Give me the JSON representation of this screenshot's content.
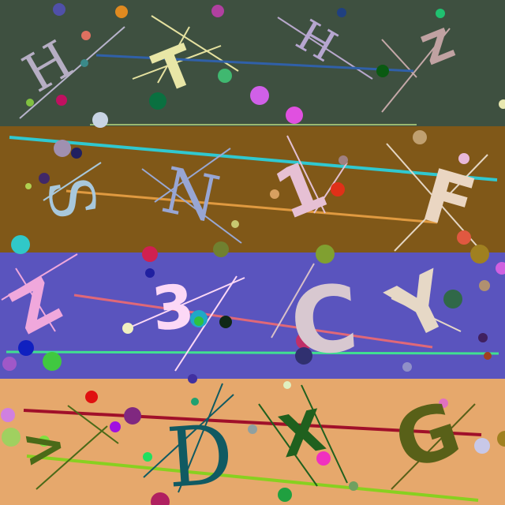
{
  "rows": [
    {
      "background": "#3e5040",
      "characters": [
        {
          "text": "H",
          "color": "#b6aec4"
        },
        {
          "text": "T",
          "color": "#e8e6a6"
        },
        {
          "text": "H",
          "color": "#b6a6d0"
        },
        {
          "text": "Z",
          "color": "#c0a2a2"
        }
      ]
    },
    {
      "background": "#805818",
      "characters": [
        {
          "text": "S",
          "color": "#a8c8dc"
        },
        {
          "text": "N",
          "color": "#98a6d4"
        },
        {
          "text": "1",
          "color": "#e6c0d4"
        },
        {
          "text": "F",
          "color": "#ead6c2"
        }
      ]
    },
    {
      "background": "#5a54be",
      "characters": [
        {
          "text": "Z",
          "color": "#f0a8dc"
        },
        {
          "text": "3",
          "color": "#fcd8f6"
        },
        {
          "text": "C",
          "color": "#d8c8d0"
        },
        {
          "text": "Y",
          "color": "#e6d8c6"
        }
      ]
    },
    {
      "background": "#e6a86c",
      "characters": [
        {
          "text": ">",
          "color": "#4a6a18"
        },
        {
          "text": "D",
          "color": "#105a62"
        },
        {
          "text": "X",
          "color": "#20601e"
        },
        {
          "text": "G",
          "color": "#586018"
        }
      ]
    }
  ]
}
